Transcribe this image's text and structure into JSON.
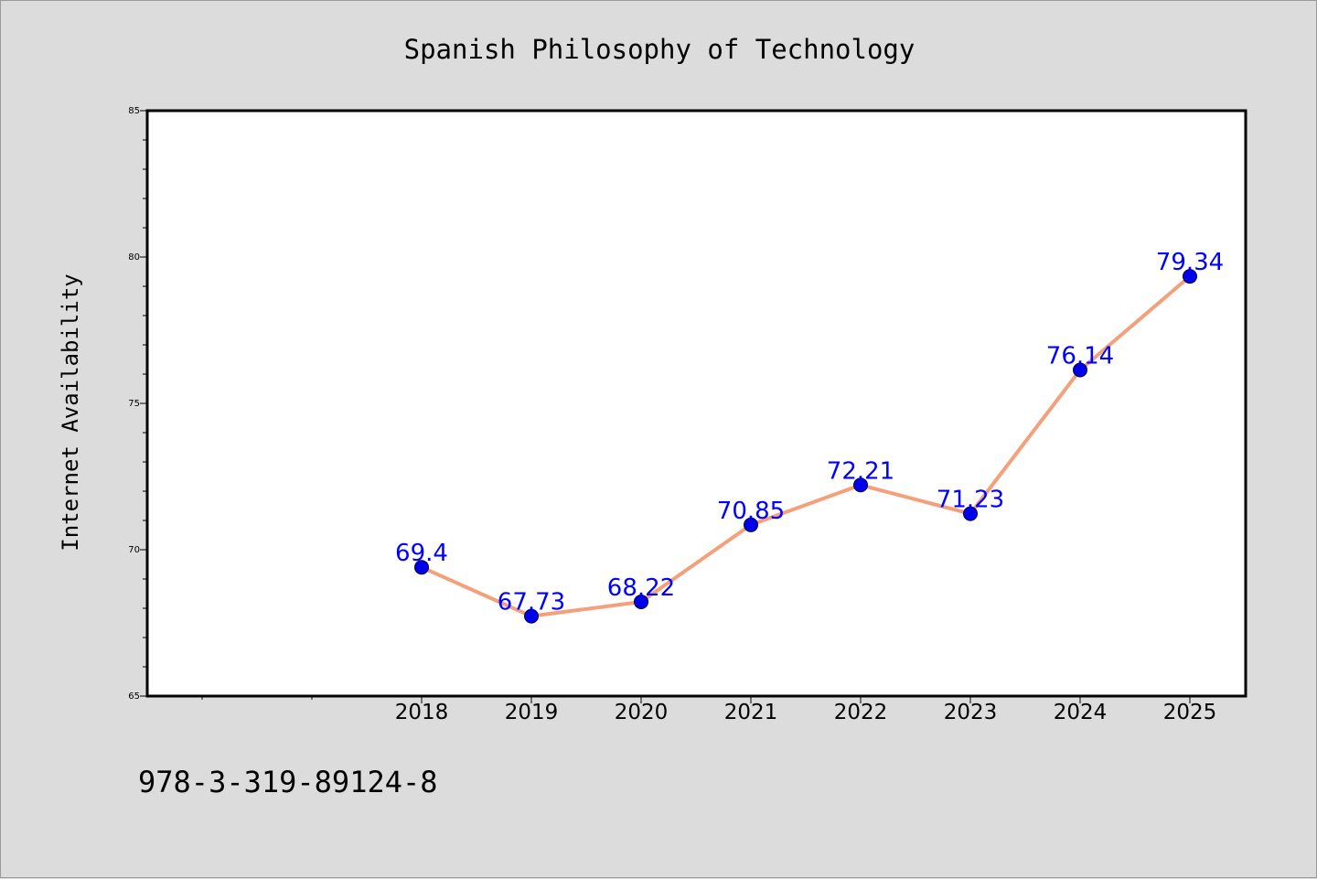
{
  "chart_data": {
    "type": "line",
    "title": "Spanish Philosophy of Technology",
    "xlabel": "",
    "ylabel": "Internet Availability",
    "categories": [
      "2018",
      "2019",
      "2020",
      "2021",
      "2022",
      "2023",
      "2024",
      "2025"
    ],
    "series": [
      {
        "values": [
          69.4,
          67.73,
          68.22,
          70.85,
          72.21,
          71.23,
          76.14,
          79.34
        ],
        "labels": [
          "69.4",
          "67.73",
          "68.22",
          "70.85",
          "72.21",
          "71.23",
          "76.14",
          "79.34"
        ],
        "line_color": "#f4a07a",
        "marker_color": "#0000ee",
        "label_color": "#0000ff"
      }
    ],
    "ylim": [
      65,
      85
    ],
    "yticks": [
      "65",
      "70",
      "75",
      "80",
      "85"
    ],
    "grid": false,
    "legend": "none"
  },
  "footer": {
    "code": "978-3-319-89124-8"
  },
  "colors": {
    "background": "#dcdcdc",
    "plot_background": "#ffffff",
    "axis": "#000000"
  }
}
